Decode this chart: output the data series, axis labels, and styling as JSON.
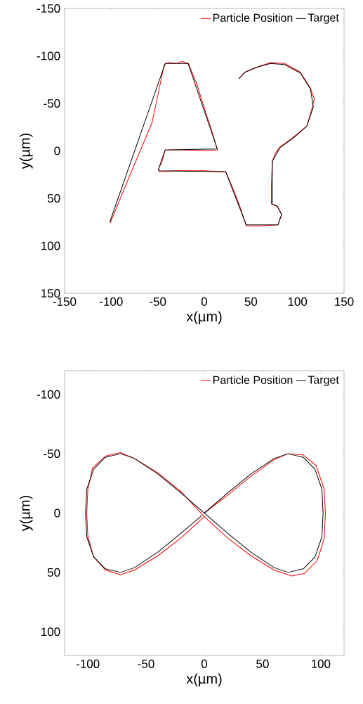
{
  "chart_data": [
    {
      "type": "line",
      "xlabel": "x(µm)",
      "ylabel": "y(µm)",
      "xlim": [
        -150,
        150
      ],
      "ylim": [
        150,
        -150
      ],
      "xticks": [
        -150,
        -100,
        -50,
        0,
        50,
        100,
        150
      ],
      "yticks": [
        -150,
        -100,
        -50,
        0,
        50,
        100,
        150
      ],
      "legend": "top right",
      "series": [
        {
          "name": "Particle Position",
          "color": "#ff0000",
          "x": [
            -101,
            -86,
            -71,
            -56,
            -43,
            -38,
            -30,
            -24,
            -17,
            -8,
            1,
            9,
            14,
            0,
            -20,
            -42,
            -45,
            -49,
            -48,
            -30,
            0,
            23,
            30,
            38,
            45,
            60,
            79,
            83,
            79,
            72,
            72,
            73,
            76,
            81,
            95,
            110,
            116,
            118,
            114,
            103,
            86,
            71,
            56,
            44,
            37
          ],
          "values": [
            76,
            40,
            5,
            -30,
            -91,
            -93,
            -92,
            -94,
            -92,
            -70,
            -42,
            -18,
            -1,
            0,
            -1,
            -1,
            10,
            19,
            22,
            21,
            21,
            22,
            38,
            58,
            79,
            79,
            78,
            67,
            59,
            56,
            35,
            11,
            3,
            -4,
            -14,
            -26,
            -46,
            -55,
            -66,
            -83,
            -92,
            -93,
            -88,
            -83,
            -76
          ]
        },
        {
          "name": "Target",
          "color": "#000000",
          "x": [
            -101.5,
            -42,
            -17.4,
            14,
            -42,
            -49,
            -49,
            23,
            45,
            79,
            83,
            78,
            73,
            73,
            81,
            95,
            110,
            117,
            114,
            103,
            86,
            71,
            56,
            44,
            37
          ],
          "values": [
            75,
            -92,
            -92,
            -2,
            -1,
            19,
            21,
            22,
            78,
            78,
            67,
            58,
            56,
            11,
            -3,
            -13,
            -26,
            -46,
            -65,
            -82,
            -91,
            -92,
            -88,
            -83,
            -76
          ]
        }
      ]
    },
    {
      "type": "line",
      "xlabel": "x(µm)",
      "ylabel": "y(µm)",
      "xlim": [
        -120,
        120
      ],
      "ylim": [
        120,
        -120
      ],
      "xticks": [
        -100,
        -50,
        0,
        50,
        100
      ],
      "yticks": [
        -100,
        -50,
        0,
        50,
        100
      ],
      "legend": "top right",
      "series": [
        {
          "name": "Particle Position",
          "color": "#ff0000",
          "x": [
            0,
            20,
            40,
            60,
            72,
            85,
            96,
            103,
            104,
            103,
            97,
            86,
            75,
            60,
            40,
            20,
            0,
            -20,
            -40,
            -60,
            -72,
            -85,
            -96,
            -100,
            -101,
            -100,
            -95,
            -85,
            -72,
            -60,
            -40,
            -20,
            0
          ],
          "values": [
            0,
            -15,
            -31,
            -45,
            -50,
            -49,
            -40,
            -20,
            0,
            21,
            40,
            51,
            53,
            48,
            36,
            21,
            3,
            -18,
            -34,
            -46,
            -51,
            -48,
            -38,
            -20,
            0,
            20,
            37,
            48,
            52,
            48,
            36,
            21,
            3
          ]
        },
        {
          "name": "Target",
          "color": "#000000",
          "x": [
            0,
            20,
            40,
            60,
            72,
            85,
            95,
            101,
            102,
            101,
            95,
            85,
            72,
            60,
            40,
            20,
            0,
            -20,
            -40,
            -60,
            -72,
            -85,
            -95,
            -101,
            -102,
            -101,
            -95,
            -85,
            -72,
            -60,
            -40,
            -20,
            -2
          ],
          "values": [
            0,
            -17,
            -33,
            -46,
            -50,
            -47,
            -37,
            -20,
            0,
            20,
            37,
            47,
            50,
            46,
            33,
            17,
            0,
            -17,
            -33,
            -46,
            -50,
            -47,
            -37,
            -20,
            0,
            20,
            37,
            47,
            50,
            46,
            33,
            17,
            2
          ]
        }
      ]
    }
  ]
}
